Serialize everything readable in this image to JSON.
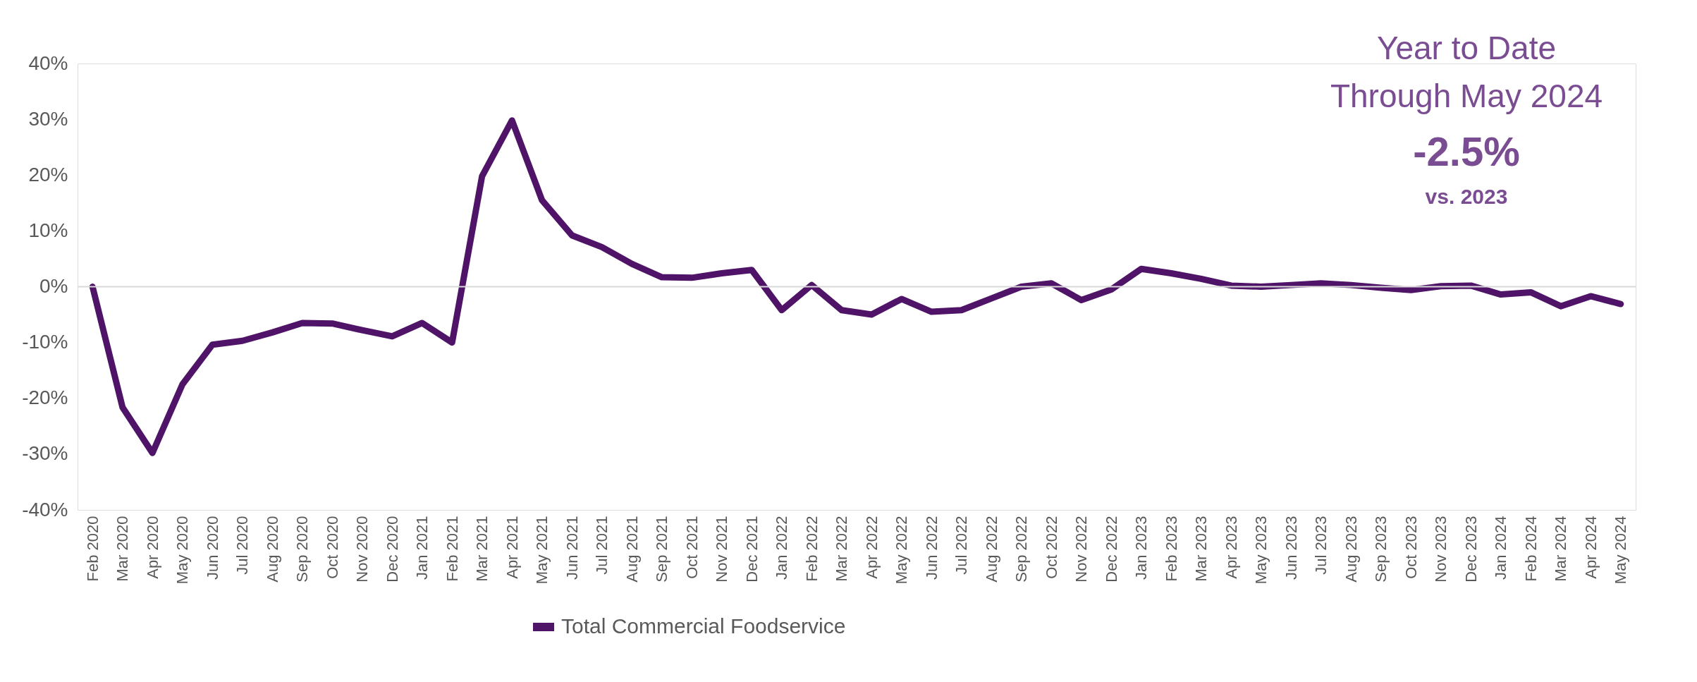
{
  "chart_data": {
    "type": "line",
    "categories": [
      "Feb 2020",
      "Mar 2020",
      "Apr 2020",
      "May 2020",
      "Jun 2020",
      "Jul 2020",
      "Aug 2020",
      "Sep 2020",
      "Oct 2020",
      "Nov 2020",
      "Dec 2020",
      "Jan 2021",
      "Feb 2021",
      "Mar 2021",
      "Apr 2021",
      "May 2021",
      "Jun 2021",
      "Jul 2021",
      "Aug 2021",
      "Sep 2021",
      "Oct 2021",
      "Nov 2021",
      "Dec 2021",
      "Jan 2022",
      "Feb 2022",
      "Mar 2022",
      "Apr 2022",
      "May 2022",
      "Jun 2022",
      "Jul 2022",
      "Aug 2022",
      "Sep 2022",
      "Oct 2022",
      "Nov 2022",
      "Dec 2022",
      "Jan 2023",
      "Feb 2023",
      "Mar 2023",
      "Apr 2023",
      "May 2023",
      "Jun 2023",
      "Jul 2023",
      "Aug 2023",
      "Sep 2023",
      "Oct 2023",
      "Nov 2023",
      "Dec 2023",
      "Jan 2024",
      "Feb 2024",
      "Mar 2024",
      "Apr 2024",
      "May 2024"
    ],
    "series": [
      {
        "name": "Total Commercial Foodservice",
        "color": "#4f1468",
        "values": [
          0,
          -21.6,
          -29.8,
          -17.5,
          -10.4,
          -9.7,
          -8.2,
          -6.5,
          -6.6,
          -7.8,
          -8.9,
          -6.5,
          -10,
          19.8,
          29.8,
          15.5,
          9.2,
          7.1,
          4.1,
          1.7,
          1.6,
          2.4,
          3.0,
          -4.2,
          0.3,
          -4.2,
          -5.0,
          -2.2,
          -4.5,
          -4.2,
          -2.1,
          0,
          0.6,
          -2.4,
          -0.5,
          3.2,
          2.4,
          1.4,
          0.2,
          0,
          0.3,
          0.6,
          0.3,
          -0.2,
          -0.6,
          0.1,
          0.2,
          -1.4,
          -1.0,
          -3.5,
          -1.7,
          -3.1
        ]
      }
    ],
    "ylim": [
      -40,
      40
    ],
    "yticks": [
      {
        "value": -40,
        "label": "-40%"
      },
      {
        "value": -30,
        "label": "-30%"
      },
      {
        "value": -20,
        "label": "-20%"
      },
      {
        "value": -10,
        "label": "-10%"
      },
      {
        "value": 0,
        "label": "0%"
      },
      {
        "value": 10,
        "label": "10%"
      },
      {
        "value": 20,
        "label": "20%"
      },
      {
        "value": 30,
        "label": "30%"
      },
      {
        "value": 40,
        "label": "40%"
      }
    ],
    "ref_lines": [
      {
        "axis": "y",
        "value": 0,
        "color": "#d9d9d9"
      }
    ],
    "grid": false,
    "legend": "bottom",
    "marker": "none",
    "line_style": "solid",
    "annotations": [
      "Year to Date",
      "Through May 2024",
      "-2.5%",
      "vs. 2023"
    ]
  }
}
